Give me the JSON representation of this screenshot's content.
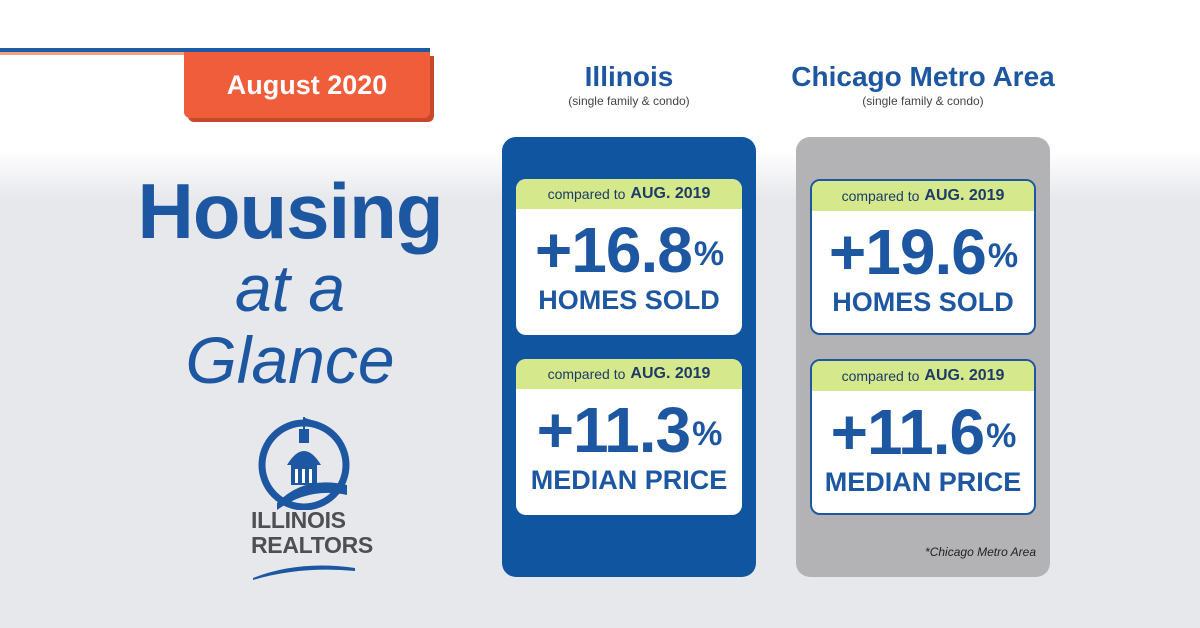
{
  "badge": {
    "date": "August 2020"
  },
  "hero": {
    "line1": "Housing",
    "line2": "at a",
    "line3": "Glance"
  },
  "logo": {
    "line1": "ILLINOIS",
    "line2": "REALTORS"
  },
  "colors": {
    "blue": "#1d57a2",
    "orange": "#ef5d3a",
    "lime": "#d5e88c",
    "gray": "#b3b3b5"
  },
  "columns": [
    {
      "title": "Illinois",
      "subtitle": "(single family & condo)",
      "cards": [
        {
          "compare_prefix": "compared to",
          "compare_period": "AUG. 2019",
          "value": "+16.8",
          "unit": "%",
          "label": "HOMES SOLD"
        },
        {
          "compare_prefix": "compared to",
          "compare_period": "AUG. 2019",
          "value": "+11.3",
          "unit": "%",
          "label": "MEDIAN PRICE"
        }
      ]
    },
    {
      "title": "Chicago Metro Area",
      "subtitle": "(single family & condo)",
      "cards": [
        {
          "compare_prefix": "compared to",
          "compare_period": "AUG. 2019",
          "value": "+19.6",
          "unit": "%",
          "label": "HOMES SOLD"
        },
        {
          "compare_prefix": "compared to",
          "compare_period": "AUG. 2019",
          "value": "+11.6",
          "unit": "%",
          "label": "MEDIAN PRICE"
        }
      ],
      "footnote": "*Chicago Metro Area"
    }
  ]
}
